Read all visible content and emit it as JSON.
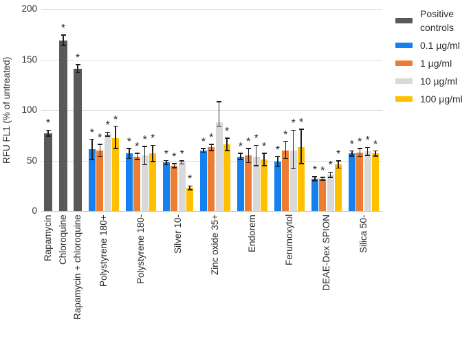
{
  "chart_data": {
    "type": "bar",
    "title": "",
    "xlabel": "",
    "ylabel": "RFU FL1 (% of untreated)",
    "ylim": [
      0,
      200
    ],
    "yticks": [
      0,
      50,
      100,
      150,
      200
    ],
    "grid": true,
    "legend_position": "right",
    "significance_marker": "*",
    "series": [
      {
        "name": "Positive controls",
        "color": "#595959"
      },
      {
        "name": "0.1 µg/ml",
        "color": "#1581F0"
      },
      {
        "name": "1 µg/ml",
        "color": "#ED7D31"
      },
      {
        "name": "10 µg/ml",
        "color": "#D9D9D9"
      },
      {
        "name": "100 µg/ml",
        "color": "#FFC000"
      }
    ],
    "groups": [
      {
        "label": "Rapamycin",
        "bars": [
          {
            "series": 0,
            "value": 77,
            "err_up": 3,
            "err_down": 3,
            "sig": true
          }
        ]
      },
      {
        "label": "Chloroquine",
        "bars": [
          {
            "series": 0,
            "value": 169,
            "err_up": 5,
            "err_down": 5,
            "sig": true
          }
        ]
      },
      {
        "label": "Rapamycin + chloroquine",
        "bars": [
          {
            "series": 0,
            "value": 141,
            "err_up": 4,
            "err_down": 4,
            "sig": true
          }
        ]
      },
      {
        "label": "Polystyrene 180+",
        "bars": [
          {
            "series": 1,
            "value": 61,
            "err_up": 10,
            "err_down": 10,
            "sig": true
          },
          {
            "series": 2,
            "value": 60,
            "err_up": 6,
            "err_down": 6,
            "sig": true
          },
          {
            "series": 3,
            "value": 76,
            "err_up": 2,
            "err_down": 2,
            "sig": true
          },
          {
            "series": 4,
            "value": 72,
            "err_up": 12,
            "err_down": 10,
            "sig": true
          }
        ]
      },
      {
        "label": "Polystyrene 180-",
        "bars": [
          {
            "series": 1,
            "value": 57,
            "err_up": 5,
            "err_down": 5,
            "sig": true
          },
          {
            "series": 2,
            "value": 54,
            "err_up": 3,
            "err_down": 3,
            "sig": true
          },
          {
            "series": 3,
            "value": 55,
            "err_up": 9,
            "err_down": 9,
            "sig": true
          },
          {
            "series": 4,
            "value": 57,
            "err_up": 8,
            "err_down": 8,
            "sig": true
          }
        ]
      },
      {
        "label": "Silver 10-",
        "bars": [
          {
            "series": 1,
            "value": 48,
            "err_up": 2,
            "err_down": 2,
            "sig": true
          },
          {
            "series": 2,
            "value": 45,
            "err_up": 2,
            "err_down": 2,
            "sig": true
          },
          {
            "series": 3,
            "value": 48,
            "err_up": 1.5,
            "err_down": 1.5,
            "sig": true
          },
          {
            "series": 4,
            "value": 23,
            "err_up": 2,
            "err_down": 2,
            "sig": true
          }
        ]
      },
      {
        "label": "Zinc oxide 35+",
        "bars": [
          {
            "series": 1,
            "value": 60,
            "err_up": 2,
            "err_down": 2,
            "sig": true
          },
          {
            "series": 2,
            "value": 63,
            "err_up": 3,
            "err_down": 3,
            "sig": true
          },
          {
            "series": 3,
            "value": 88,
            "err_up": 20,
            "err_down": 4,
            "sig": false
          },
          {
            "series": 4,
            "value": 66,
            "err_up": 6,
            "err_down": 6,
            "sig": true
          }
        ]
      },
      {
        "label": "Endorem",
        "bars": [
          {
            "series": 1,
            "value": 54,
            "err_up": 3,
            "err_down": 3,
            "sig": true
          },
          {
            "series": 2,
            "value": 55,
            "err_up": 7,
            "err_down": 7,
            "sig": true
          },
          {
            "series": 3,
            "value": 54,
            "err_up": 11,
            "err_down": 9,
            "sig": true
          },
          {
            "series": 4,
            "value": 51,
            "err_up": 6,
            "err_down": 6,
            "sig": true
          }
        ]
      },
      {
        "label": "Ferumoxytol",
        "bars": [
          {
            "series": 1,
            "value": 49,
            "err_up": 5,
            "err_down": 5,
            "sig": true
          },
          {
            "series": 2,
            "value": 60,
            "err_up": 9,
            "err_down": 8,
            "sig": true
          },
          {
            "series": 3,
            "value": 60,
            "err_up": 20,
            "err_down": 18,
            "sig": true
          },
          {
            "series": 4,
            "value": 63,
            "err_up": 18,
            "err_down": 16,
            "sig": true
          }
        ]
      },
      {
        "label": "DEAE-Dex SPION",
        "bars": [
          {
            "series": 1,
            "value": 32,
            "err_up": 2,
            "err_down": 2,
            "sig": true
          },
          {
            "series": 2,
            "value": 32,
            "err_up": 1.5,
            "err_down": 1.5,
            "sig": true
          },
          {
            "series": 3,
            "value": 36,
            "err_up": 2.5,
            "err_down": 2.5,
            "sig": true
          },
          {
            "series": 4,
            "value": 46,
            "err_up": 3.5,
            "err_down": 3.5,
            "sig": true
          }
        ]
      },
      {
        "label": "Silica 50-",
        "bars": [
          {
            "series": 1,
            "value": 57,
            "err_up": 2.5,
            "err_down": 2.5,
            "sig": true
          },
          {
            "series": 2,
            "value": 58,
            "err_up": 4,
            "err_down": 4,
            "sig": true
          },
          {
            "series": 3,
            "value": 59,
            "err_up": 4,
            "err_down": 4,
            "sig": true
          },
          {
            "series": 4,
            "value": 57,
            "err_up": 2.5,
            "err_down": 2.5,
            "sig": true
          }
        ]
      }
    ]
  }
}
